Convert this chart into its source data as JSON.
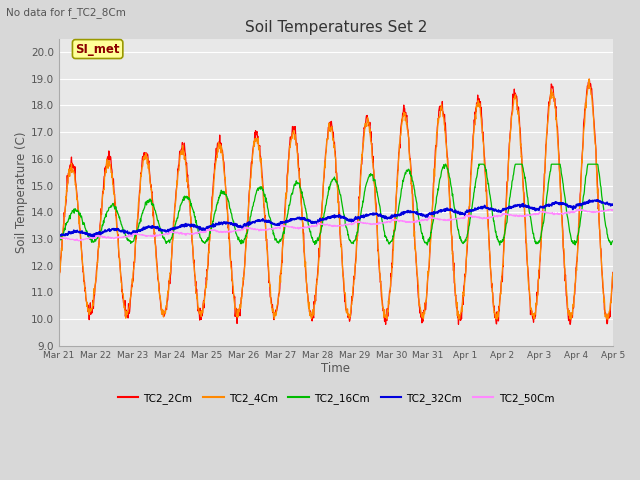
{
  "title": "Soil Temperatures Set 2",
  "xlabel": "Time",
  "ylabel": "Soil Temperature (C)",
  "top_left_text": "No data for f_TC2_8Cm",
  "annotation_box": "SI_met",
  "ylim": [
    9.0,
    20.5
  ],
  "yticks": [
    9.0,
    10.0,
    11.0,
    12.0,
    13.0,
    14.0,
    15.0,
    16.0,
    17.0,
    18.0,
    19.0,
    20.0
  ],
  "bg_color": "#d8d8d8",
  "plot_bg_color": "#e8e8e8",
  "grid_color": "#ffffff",
  "series": [
    {
      "label": "TC2_2Cm",
      "color": "#ff0000"
    },
    {
      "label": "TC2_4Cm",
      "color": "#ff8800"
    },
    {
      "label": "TC2_16Cm",
      "color": "#00bb00"
    },
    {
      "label": "TC2_32Cm",
      "color": "#0000dd"
    },
    {
      "label": "TC2_50Cm",
      "color": "#ff88ff"
    }
  ],
  "xtick_labels": [
    "Mar 21",
    "Mar 22",
    "Mar 23",
    "Mar 24",
    "Mar 25",
    "Mar 26",
    "Mar 27",
    "Mar 28",
    "Mar 29",
    "Mar 30",
    "Mar 31",
    "Apr 1",
    "Apr 2",
    "Apr 3",
    "Apr 4",
    "Apr 5"
  ]
}
